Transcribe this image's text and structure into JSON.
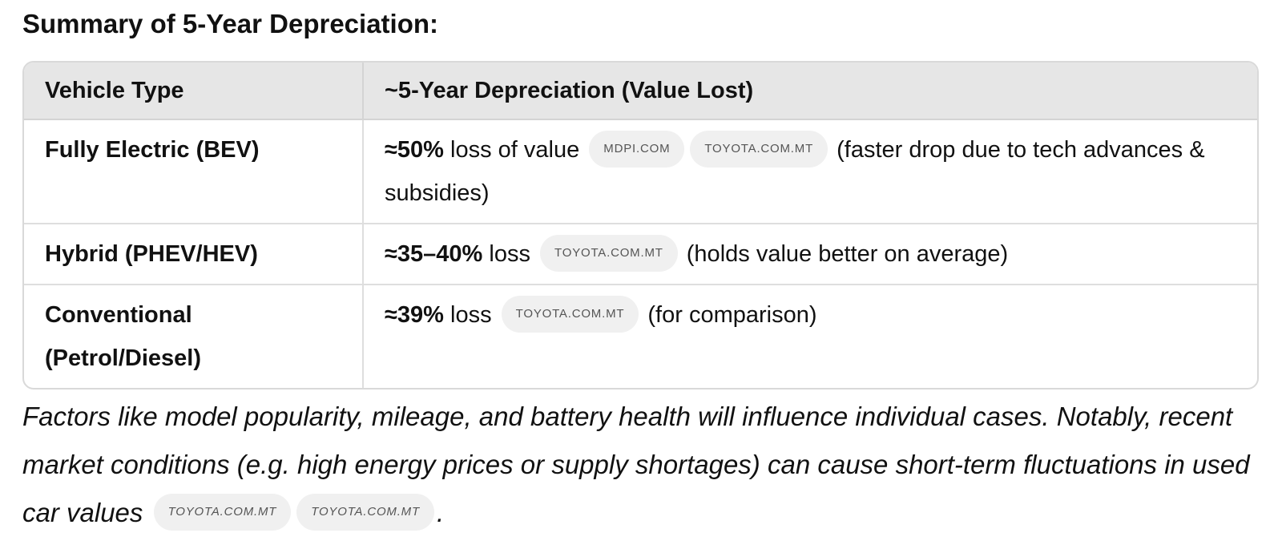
{
  "heading": "Summary of 5-Year Depreciation:",
  "table": {
    "headers": [
      "Vehicle Type",
      "~5-Year Depreciation (Value Lost)"
    ],
    "rows": [
      {
        "type": "Fully Electric (BEV)",
        "value": "≈50%",
        "suffix": " loss of value ",
        "sources": [
          "MDPI.COM",
          "TOYOTA.COM.MT"
        ],
        "note": " (faster drop due to tech advances & subsidies)"
      },
      {
        "type": "Hybrid (PHEV/HEV)",
        "value": "≈35–40%",
        "suffix": " loss ",
        "sources": [
          "TOYOTA.COM.MT"
        ],
        "note": " (holds value better on average)"
      },
      {
        "type": "Conventional (Petrol/Diesel)",
        "value": "≈39%",
        "suffix": " loss ",
        "sources": [
          "TOYOTA.COM.MT"
        ],
        "note": " (for comparison)"
      }
    ]
  },
  "footnote": {
    "text": "Factors like model popularity, mileage, and battery health will influence individual cases. Notably, recent market conditions (e.g. high energy prices or supply shortages) can cause short-term fluctuations in used car values ",
    "sources": [
      "TOYOTA.COM.MT",
      "TOYOTA.COM.MT"
    ],
    "end": "."
  }
}
